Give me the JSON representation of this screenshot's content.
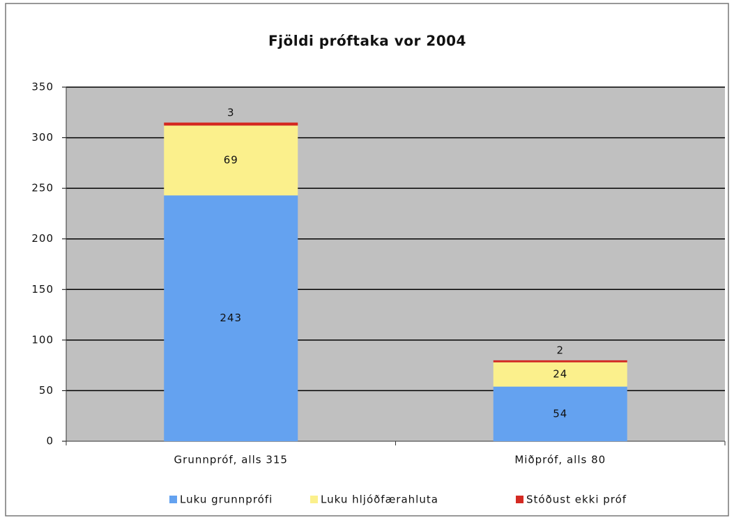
{
  "chart_data": {
    "type": "stacked_bar",
    "title": "Fjöldi próftaka vor 2004",
    "categories": [
      "Grunnpróf, alls 315",
      "Miðpróf, alls 80"
    ],
    "series": [
      {
        "name": "Luku grunnprófi",
        "color": "#64a2f0",
        "values": [
          243,
          54
        ]
      },
      {
        "name": "Luku hljóðfærahluta",
        "color": "#fbf08c",
        "values": [
          69,
          24
        ]
      },
      {
        "name": "Stóðust ekki próf",
        "color": "#d42a22",
        "values": [
          3,
          2
        ]
      }
    ],
    "ylim": [
      0,
      350
    ],
    "yticks": [
      0,
      50,
      100,
      150,
      200,
      250,
      300,
      350
    ],
    "grid": true,
    "legend": "bottom"
  }
}
